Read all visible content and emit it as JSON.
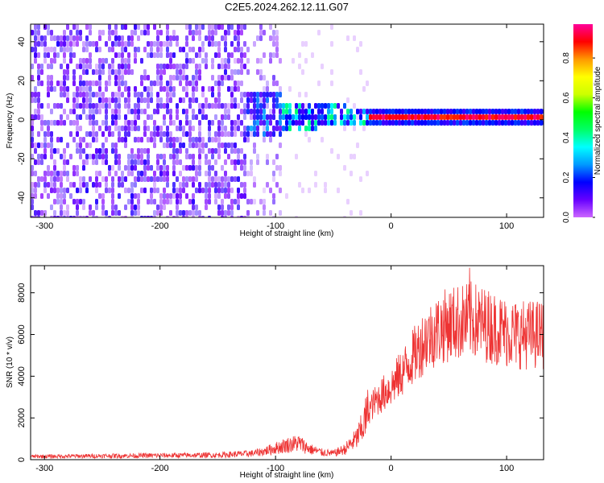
{
  "title": "C2E5.2024.262.12.11.G07",
  "chart_data": [
    {
      "type": "heatmap",
      "xlabel": "Height of straight line (km)",
      "ylabel": "Frequency (Hz)",
      "xlim": [
        -312,
        132
      ],
      "ylim": [
        -50,
        49
      ],
      "xticks": [
        -300,
        -200,
        -100,
        0,
        100
      ],
      "yticks": [
        -40,
        -20,
        0,
        20,
        40
      ],
      "colorbar": {
        "label": "Normalized spectral amplitude",
        "range": [
          0,
          0.97
        ],
        "ticks": [
          "0.0",
          "0.2",
          "0.4",
          "0.6",
          "0.8"
        ],
        "colors": [
          "#cc66ff",
          "#6600ff",
          "#0000ff",
          "#0099ff",
          "#00ffff",
          "#00ff66",
          "#00ff00",
          "#ccff00",
          "#ffff00",
          "#ff9900",
          "#ff0000",
          "#ff0099"
        ]
      },
      "features": {
        "broadband_noise_extent_km": [
          -312,
          -125
        ],
        "narrow_carrier_start_km": -20,
        "carrier_frequency_hz": 1,
        "carrier_amplitude": 0.85
      }
    },
    {
      "type": "line",
      "xlabel": "Height of straight line (km)",
      "ylabel": "SNR (10 * v/v)",
      "xlim": [
        -312,
        132
      ],
      "ylim": [
        0,
        9300
      ],
      "xticks": [
        -300,
        -200,
        -100,
        0,
        100
      ],
      "yticks": [
        0,
        2000,
        4000,
        6000,
        8000
      ],
      "color": "#ee3333",
      "series": [
        {
          "x": [
            -312,
            -250,
            -200,
            -150,
            -120,
            -110,
            -100,
            -90,
            -80,
            -70,
            -60,
            -50,
            -40,
            -30,
            -25,
            -20,
            -15,
            -10,
            0,
            10,
            20,
            30,
            40,
            50,
            60,
            70,
            80,
            90,
            100,
            110,
            120,
            132
          ],
          "values": [
            150,
            180,
            200,
            220,
            300,
            400,
            550,
            700,
            800,
            500,
            350,
            300,
            500,
            1000,
            1500,
            2300,
            2700,
            3000,
            3500,
            4200,
            5000,
            5800,
            6200,
            6500,
            6600,
            6700,
            6500,
            6300,
            6100,
            6000,
            6000,
            6000
          ],
          "peak": {
            "x": 68,
            "y": 9200
          }
        }
      ]
    }
  ]
}
